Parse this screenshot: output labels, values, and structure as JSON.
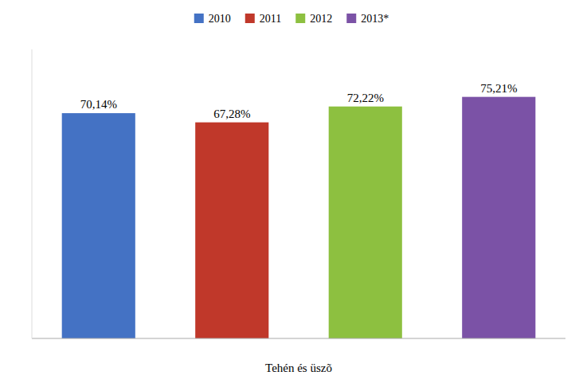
{
  "chart_data": {
    "type": "bar",
    "categories": [
      "2010",
      "2011",
      "2012",
      "2013*"
    ],
    "values": [
      70.14,
      67.28,
      72.22,
      75.21
    ],
    "value_labels": [
      "70,14%",
      "67,28%",
      "72,22%",
      "75,21%"
    ],
    "colors": [
      "#4472C4",
      "#C0382A",
      "#8DC040",
      "#7B52A6"
    ],
    "xlabel": "Tehén és üszõ",
    "ylim": [
      0,
      90
    ],
    "data_labels": true,
    "tick_labels": false,
    "grid": false,
    "legend": "top"
  }
}
